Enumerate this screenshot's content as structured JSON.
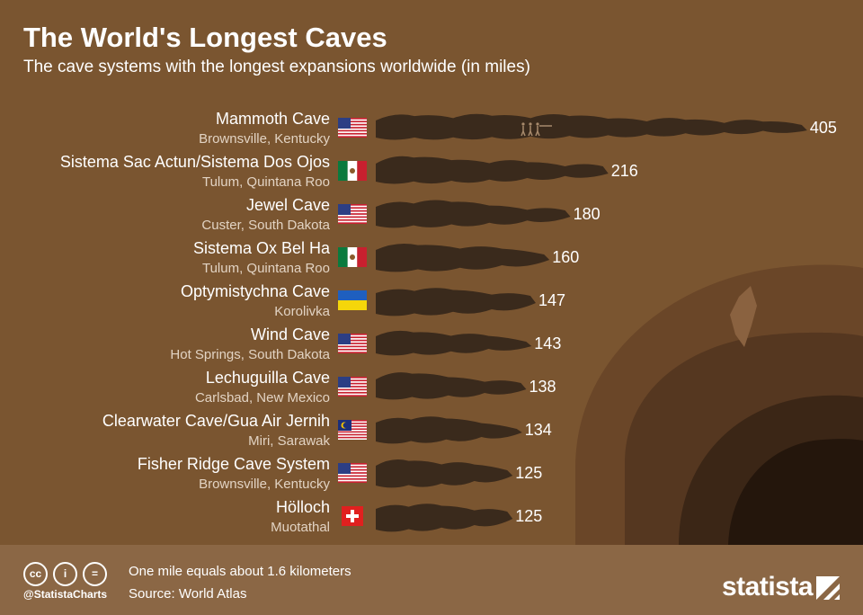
{
  "title": "The World's Longest Caves",
  "subtitle": "The cave systems with the longest expansions worldwide (in miles)",
  "chart_data": {
    "type": "bar",
    "title": "The World's Longest Caves",
    "subtitle": "The cave systems with the longest expansions worldwide (in miles)",
    "unit": "miles",
    "categories": [
      "Mammoth Cave",
      "Sistema Sac Actun/Sistema Dos Ojos",
      "Jewel Cave",
      "Sistema Ox Bel Ha",
      "Optymistychna Cave",
      "Wind Cave",
      "Lechuguilla Cave",
      "Clearwater Cave/Gua Air Jernih",
      "Fisher Ridge Cave System",
      "Hölloch"
    ],
    "locations": [
      "Brownsville, Kentucky",
      "Tulum, Quintana Roo",
      "Custer, South Dakota",
      "Tulum, Quintana Roo",
      "Korolivka",
      "Hot Springs, South Dakota",
      "Carlsbad, New Mexico",
      "Miri, Sarawak",
      "Brownsville, Kentucky",
      "Muotathal"
    ],
    "flags": [
      "us",
      "mx",
      "us",
      "mx",
      "ua",
      "us",
      "us",
      "my",
      "us",
      "ch"
    ],
    "values": [
      405,
      216,
      180,
      160,
      147,
      143,
      138,
      134,
      125,
      125
    ],
    "xlim": [
      0,
      405
    ],
    "grid": false
  },
  "footer": {
    "cc_icons": [
      "cc",
      "i",
      "="
    ],
    "handle": "@StatistaCharts",
    "note": "One mile equals about 1.6 kilometers",
    "source": "Source: World Atlas",
    "brand": "statista"
  },
  "colors": {
    "background": "#7a5530",
    "cave": "#3a2a1c",
    "footer": "#8b6745",
    "subtext": "#e2d3c3",
    "text": "#ffffff"
  }
}
